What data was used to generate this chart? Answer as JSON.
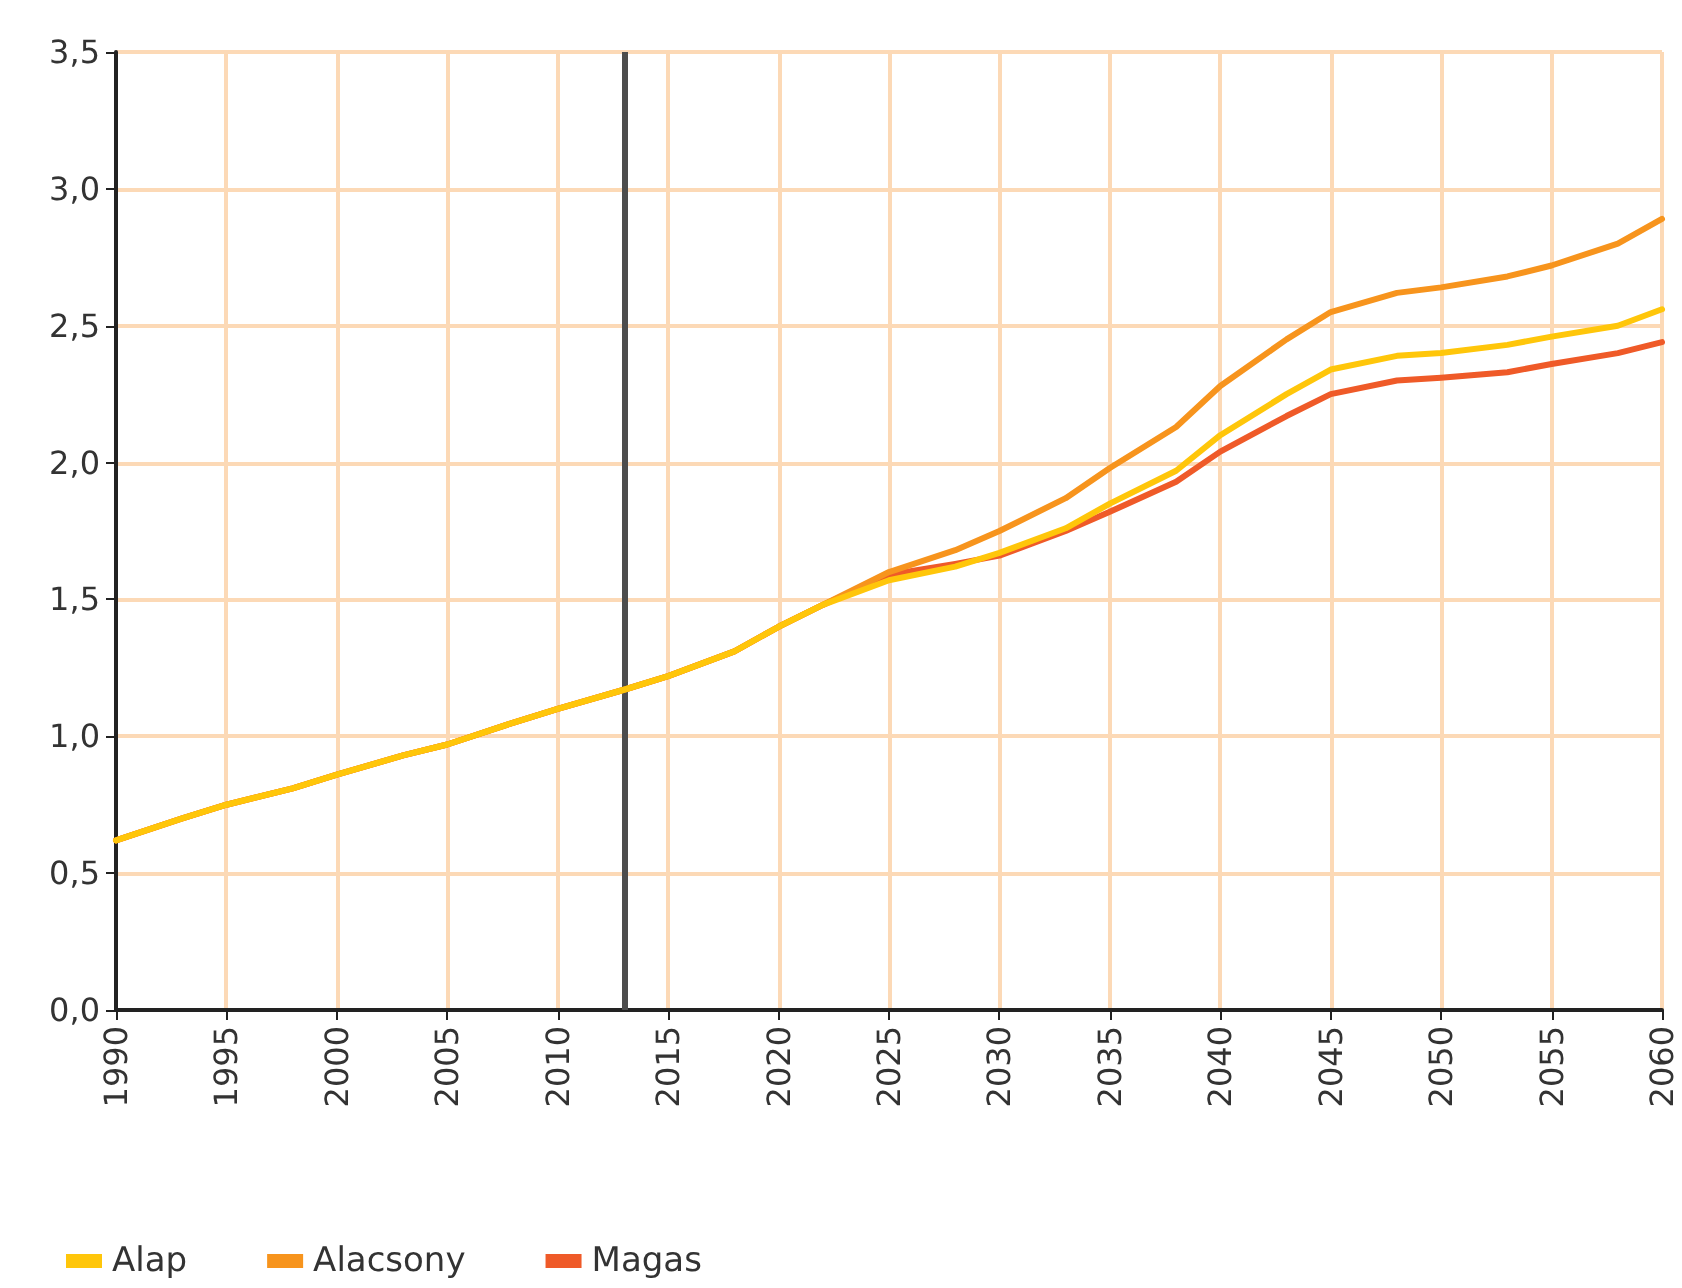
{
  "chart_data": {
    "type": "line",
    "x": [
      1990,
      1993,
      1995,
      1998,
      2000,
      2003,
      2005,
      2008,
      2010,
      2013,
      2015,
      2018,
      2020,
      2022,
      2025,
      2028,
      2030,
      2033,
      2035,
      2038,
      2040,
      2043,
      2045,
      2048,
      2050,
      2053,
      2055,
      2058,
      2060
    ],
    "series": [
      {
        "name": "Alap",
        "color": "#ffc60a",
        "values": [
          0.62,
          0.7,
          0.75,
          0.81,
          0.86,
          0.93,
          0.97,
          1.05,
          1.1,
          1.17,
          1.22,
          1.31,
          1.4,
          1.48,
          1.57,
          1.62,
          1.67,
          1.76,
          1.85,
          1.97,
          2.1,
          2.25,
          2.34,
          2.39,
          2.4,
          2.43,
          2.46,
          2.5,
          2.56
        ]
      },
      {
        "name": "Alacsony",
        "color": "#f7941d",
        "values": [
          0.62,
          0.7,
          0.75,
          0.81,
          0.86,
          0.93,
          0.97,
          1.05,
          1.1,
          1.17,
          1.22,
          1.31,
          1.4,
          1.48,
          1.6,
          1.68,
          1.75,
          1.87,
          1.98,
          2.13,
          2.28,
          2.45,
          2.55,
          2.62,
          2.64,
          2.68,
          2.72,
          2.8,
          2.89
        ]
      },
      {
        "name": "Magas",
        "color": "#ef5a28",
        "values": [
          0.62,
          0.7,
          0.75,
          0.81,
          0.86,
          0.93,
          0.97,
          1.05,
          1.1,
          1.17,
          1.22,
          1.31,
          1.4,
          1.48,
          1.59,
          1.63,
          1.66,
          1.75,
          1.82,
          1.93,
          2.04,
          2.17,
          2.25,
          2.3,
          2.31,
          2.33,
          2.36,
          2.4,
          2.44
        ]
      }
    ],
    "xlim": [
      1990,
      2060
    ],
    "xticks": [
      1990,
      1995,
      2000,
      2005,
      2010,
      2015,
      2020,
      2025,
      2030,
      2035,
      2040,
      2045,
      2050,
      2055,
      2060
    ],
    "ylim": [
      0,
      3.5
    ],
    "yticks": [
      {
        "value": 0,
        "label": "0,0"
      },
      {
        "value": 0.5,
        "label": "0,5"
      },
      {
        "value": 1,
        "label": "1,0"
      },
      {
        "value": 1.5,
        "label": "1,5"
      },
      {
        "value": 2,
        "label": "2,0"
      },
      {
        "value": 2.5,
        "label": "2,5"
      },
      {
        "value": 3,
        "label": "3,0"
      },
      {
        "value": 3.5,
        "label": "3,5"
      }
    ],
    "grid": true,
    "legend": "bottom left",
    "marker": "none",
    "line_style": "solid",
    "ref_lines": [
      {
        "axis": "x",
        "value": 2013,
        "color": "#4d4d4d"
      }
    ]
  }
}
